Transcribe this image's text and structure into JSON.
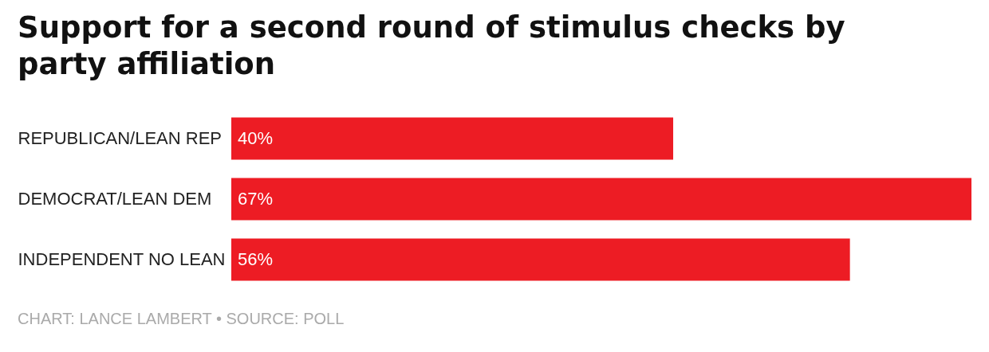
{
  "chart_data": {
    "type": "bar",
    "orientation": "horizontal",
    "title": "Support for a second round of stimulus checks by party affiliation",
    "categories": [
      "REPUBLICAN/LEAN REP",
      "DEMOCRAT/LEAN DEM",
      "INDEPENDENT NO LEAN"
    ],
    "values": [
      40,
      67,
      56
    ],
    "value_labels": [
      "40%",
      "67%",
      "56%"
    ],
    "color": "#ed1c24",
    "annotations": [
      "CHART: LANCE LAMBERT • SOURCE: POLL"
    ]
  }
}
